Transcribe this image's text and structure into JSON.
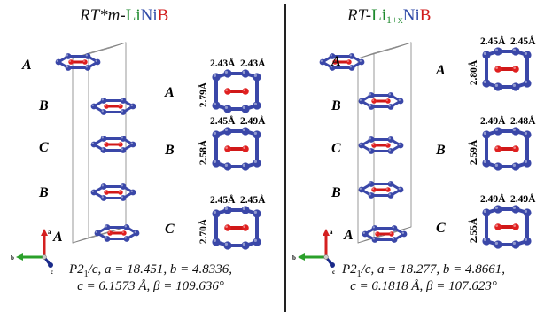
{
  "left": {
    "title": {
      "prefix": "RT*m-",
      "li": "Li",
      "ni": "Ni",
      "b": "B"
    },
    "stack_labels": [
      "A",
      "B",
      "C",
      "B",
      "A"
    ],
    "detail_labels": [
      "A",
      "B",
      "C"
    ],
    "details": [
      {
        "top_left": "2.43Å",
        "top_right": "2.43Å",
        "side": "2.79Å"
      },
      {
        "top_left": "2.45Å",
        "top_right": "2.49Å",
        "side": "2.58Å"
      },
      {
        "top_left": "2.45Å",
        "top_right": "2.45Å",
        "side": "2.70Å"
      }
    ],
    "caption": {
      "sg_p": "P2",
      "sg_sub": "1",
      "sg_c": "/c",
      "line1_rest": ", a = 18.451, b = 4.8336,",
      "line2": "c = 6.1573 Å, β = 109.636°"
    }
  },
  "right": {
    "title": {
      "prefix": "RT-",
      "li": "Li",
      "sub": "1+x",
      "ni": "Ni",
      "b": "B"
    },
    "stack_labels": [
      "A",
      "B",
      "C",
      "B",
      "A"
    ],
    "detail_labels": [
      "A",
      "B",
      "C"
    ],
    "details": [
      {
        "top_left": "2.45Å",
        "top_right": "2.45Å",
        "side": "2.80Å"
      },
      {
        "top_left": "2.49Å",
        "top_right": "2.48Å",
        "side": "2.59Å"
      },
      {
        "top_left": "2.49Å",
        "top_right": "2.49Å",
        "side": "2.55Å"
      }
    ],
    "caption": {
      "sg_p": "P2",
      "sg_sub": "1",
      "sg_c": "/c",
      "line1_rest": ", a = 18.277, b = 4.8661,",
      "line2": "c = 6.1818 Å, β = 107.623°"
    }
  },
  "axes": {
    "a": "a",
    "b": "b",
    "c": "c"
  },
  "colors": {
    "ni_atom": "#3a47a8",
    "ni_bond": "#3a47a8",
    "b_atom": "#e02020",
    "b_bond": "#d01818",
    "axis_a": "#d42020",
    "axis_b": "#2aa02a",
    "axis_c": "#1a2a8a",
    "cell": "#808080"
  }
}
